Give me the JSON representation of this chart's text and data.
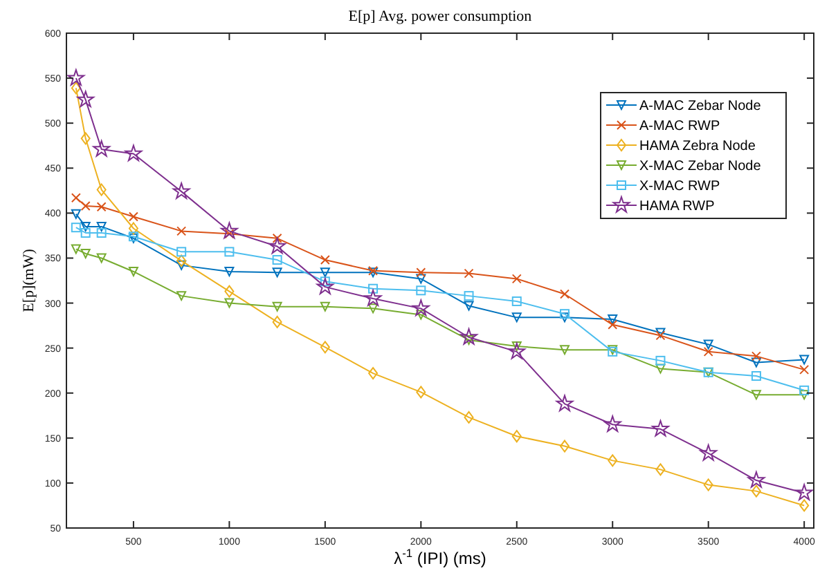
{
  "chart_data": {
    "type": "line",
    "title": "E[p] Avg. power consumption",
    "xlabel": "λ$^{-1}$ (IPI) (ms)",
    "ylabel": "E[p](mW)",
    "x": [
      200,
      250,
      333,
      500,
      750,
      1000,
      1250,
      1500,
      1750,
      2000,
      2250,
      2500,
      2750,
      3000,
      3250,
      3500,
      3750,
      4000
    ],
    "xlim": [
      150,
      4050
    ],
    "xticks": [
      500,
      1000,
      1500,
      2000,
      2500,
      3000,
      3500,
      4000
    ],
    "ylim": [
      50,
      600
    ],
    "yticks": [
      50,
      100,
      150,
      200,
      250,
      300,
      350,
      400,
      450,
      500,
      550,
      600
    ],
    "grid": false,
    "legend": "top right",
    "line_style": "solid",
    "series": [
      {
        "name": "A-MAC Zebar Node",
        "color": "#0072bd",
        "marker": "triangle",
        "values": [
          399,
          385,
          385,
          372,
          342,
          335,
          334,
          334,
          334,
          327,
          297,
          284,
          284,
          282,
          267,
          254,
          234,
          237
        ]
      },
      {
        "name": "A-MAC RWP",
        "color": "#d95319",
        "marker": "cross",
        "values": [
          417,
          408,
          407,
          396,
          380,
          377,
          372,
          348,
          336,
          334,
          333,
          327,
          310,
          276,
          264,
          246,
          241,
          226
        ]
      },
      {
        "name": "HAMA Zebra Node",
        "color": "#edb120",
        "marker": "diamond",
        "values": [
          539,
          483,
          426,
          383,
          347,
          313,
          279,
          251,
          222,
          201,
          173,
          152,
          141,
          125,
          115,
          98,
          91,
          75
        ]
      },
      {
        "name": "X-MAC Zebar Node",
        "color": "#77ac30",
        "marker": "triangle",
        "values": [
          360,
          355,
          350,
          335,
          308,
          300,
          296,
          296,
          294,
          287,
          259,
          252,
          248,
          248,
          227,
          223,
          198,
          198
        ]
      },
      {
        "name": "X-MAC RWP",
        "color": "#4dbeee",
        "marker": "square",
        "values": [
          384,
          378,
          378,
          374,
          357,
          357,
          348,
          324,
          316,
          314,
          308,
          302,
          288,
          246,
          236,
          223,
          219,
          203
        ]
      },
      {
        "name": "HAMA RWP",
        "color": "#7e2f8e",
        "marker": "star",
        "values": [
          550,
          526,
          471,
          466,
          424,
          380,
          363,
          318,
          305,
          294,
          262,
          246,
          188,
          165,
          160,
          133,
          103,
          89
        ]
      }
    ]
  }
}
